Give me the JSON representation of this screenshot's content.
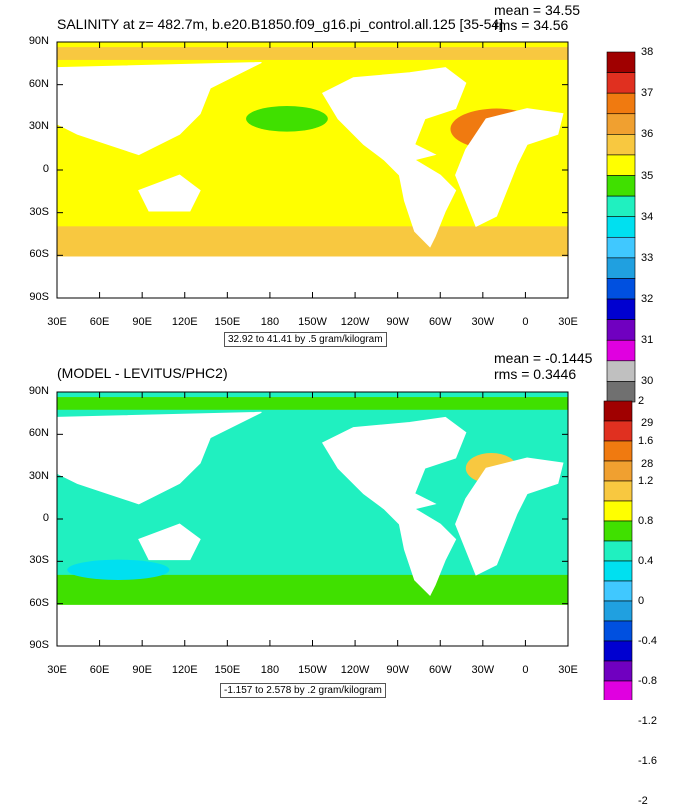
{
  "panels": [
    {
      "title": "SALINITY at z= 482.7m, b.e20.B1850.f09_g16.pi_control.all.125 [35-54]",
      "mean": "mean = 34.55",
      "rms": "rms = 34.56",
      "range": "32.92 to 41.41 by .5 gram/kilogram",
      "legend_labels": [
        "38",
        "37",
        "36",
        "35",
        "34",
        "33",
        "32",
        "31",
        "30",
        "29",
        "28"
      ],
      "legend_colors": [
        "#a00000",
        "#e03020",
        "#f07a10",
        "#f0a030",
        "#f8c840",
        "#ffff00",
        "#40e000",
        "#20f0c0",
        "#00e0f0",
        "#40c8ff",
        "#20a0e0",
        "#0050e0",
        "#0000d0",
        "#7000c0",
        "#e000e0",
        "#c0c0c0",
        "#707070"
      ]
    },
    {
      "title": "(MODEL - LEVITUS/PHC2)",
      "mean": "mean = -0.1445",
      "rms": "rms = 0.3446",
      "range": "-1.157 to 2.578 by .2 gram/kilogram",
      "legend_labels": [
        "2",
        "1.6",
        "1.2",
        "0.8",
        "0.4",
        "0",
        "-0.4",
        "-0.8",
        "-1.2",
        "-1.6",
        "-2"
      ],
      "legend_colors": [
        "#a00000",
        "#e03020",
        "#f07a10",
        "#f0a030",
        "#f8c840",
        "#ffff00",
        "#40e000",
        "#20f0c0",
        "#00e0f0",
        "#40c8ff",
        "#20a0e0",
        "#0050e0",
        "#0000d0",
        "#7000c0",
        "#e000e0",
        "#c0c0c0",
        "#707070"
      ]
    }
  ],
  "lat_labels": [
    "90N",
    "60N",
    "30N",
    "0",
    "30S",
    "60S",
    "90S"
  ],
  "lon_labels": [
    "30E",
    "60E",
    "90E",
    "120E",
    "150E",
    "180",
    "150W",
    "120W",
    "90W",
    "60W",
    "30W",
    "0",
    "30E"
  ]
}
